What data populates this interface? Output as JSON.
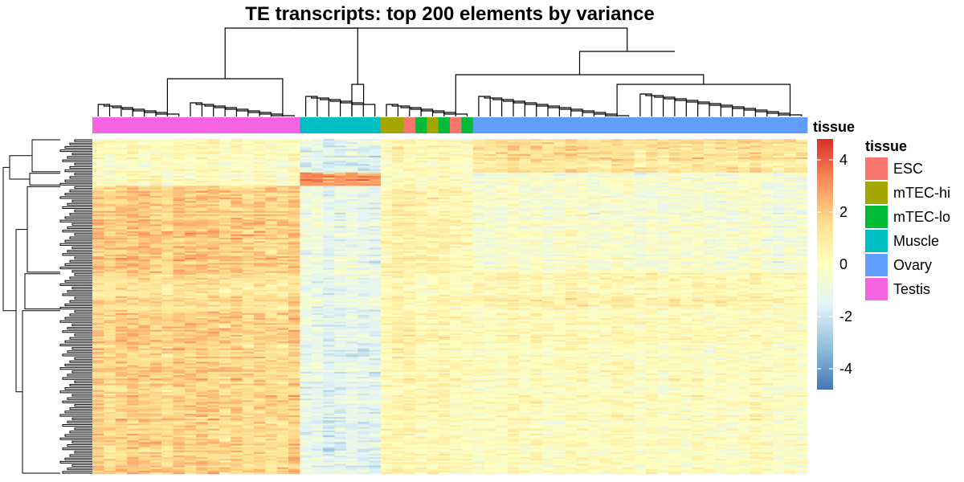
{
  "chart_data": {
    "type": "heatmap",
    "title": "TE transcripts: top 200 elements by variance",
    "annotation_label": "tissue",
    "legend": {
      "title": "tissue",
      "placement": "right",
      "entries": [
        {
          "name": "ESC",
          "color": "#F8766D"
        },
        {
          "name": "mTEC-hi",
          "color": "#A3A500"
        },
        {
          "name": "mTEC-lo",
          "color": "#00BA38"
        },
        {
          "name": "Muscle",
          "color": "#00BFC4"
        },
        {
          "name": "Ovary",
          "color": "#619CFF"
        },
        {
          "name": "Testis",
          "color": "#F564E3"
        }
      ]
    },
    "color_scale": {
      "range": [
        -4.8,
        4.8
      ],
      "ticks": [
        4,
        2,
        0,
        -2,
        -4
      ],
      "colors": [
        "#4575B4",
        "#91BFDB",
        "#E0F3F8",
        "#FFFFBF",
        "#FEE090",
        "#FC8D59",
        "#D73027"
      ]
    },
    "n_rows": 200,
    "column_groups": [
      "Testis",
      "Testis",
      "Testis",
      "Testis",
      "Testis",
      "Testis",
      "Testis",
      "Testis",
      "Testis",
      "Testis",
      "Testis",
      "Testis",
      "Testis",
      "Testis",
      "Testis",
      "Testis",
      "Testis",
      "Testis",
      "Muscle",
      "Muscle",
      "Muscle",
      "Muscle",
      "Muscle",
      "Muscle",
      "Muscle",
      "mTEC-hi",
      "mTEC-hi",
      "ESC",
      "mTEC-lo",
      "mTEC-hi",
      "mTEC-lo",
      "ESC",
      "mTEC-lo",
      "Ovary",
      "Ovary",
      "Ovary",
      "Ovary",
      "Ovary",
      "Ovary",
      "Ovary",
      "Ovary",
      "Ovary",
      "Ovary",
      "Ovary",
      "Ovary",
      "Ovary",
      "Ovary",
      "Ovary",
      "Ovary",
      "Ovary",
      "Ovary",
      "Ovary",
      "Ovary",
      "Ovary",
      "Ovary",
      "Ovary",
      "Ovary",
      "Ovary",
      "Ovary",
      "Ovary",
      "Ovary",
      "Ovary"
    ],
    "row_clusters": [
      {
        "rows": 20,
        "mean": {
          "Testis": 0.0,
          "Muscle": -1.5,
          "ESC": 0.2,
          "mTEC-hi": 0.2,
          "mTEC-lo": 0.2,
          "Ovary": 1.3
        }
      },
      {
        "rows": 8,
        "mean": {
          "Testis": 0.0,
          "Muscle": 3.0,
          "ESC": 0.0,
          "mTEC-hi": 0.0,
          "mTEC-lo": 0.0,
          "Ovary": -0.4
        }
      },
      {
        "rows": 52,
        "mean": {
          "Testis": 2.0,
          "Muscle": -1.0,
          "ESC": 0.6,
          "mTEC-hi": 0.6,
          "mTEC-lo": 0.6,
          "Ovary": -0.4
        }
      },
      {
        "rows": 22,
        "mean": {
          "Testis": 1.4,
          "Muscle": -1.0,
          "ESC": 0.3,
          "mTEC-hi": 0.3,
          "mTEC-lo": 0.3,
          "Ovary": 0.6
        }
      },
      {
        "rows": 98,
        "mean": {
          "Testis": 1.8,
          "Muscle": -1.3,
          "ESC": 0.4,
          "mTEC-hi": 0.4,
          "mTEC-lo": 0.4,
          "Ovary": 0.1
        }
      }
    ]
  }
}
